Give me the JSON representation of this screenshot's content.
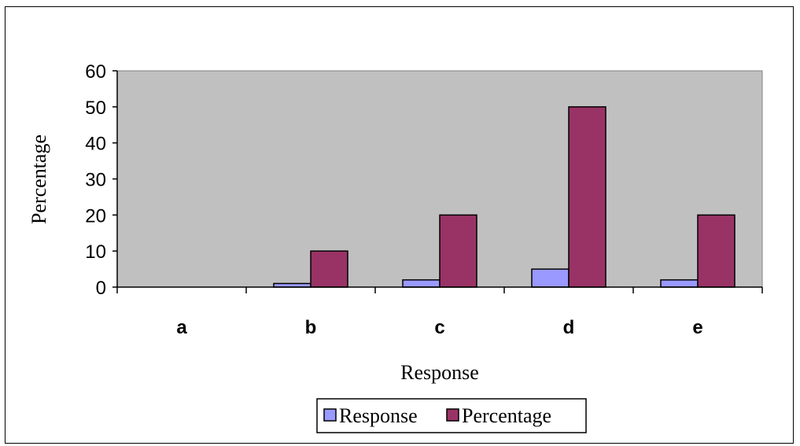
{
  "chart_data": {
    "type": "bar",
    "categories": [
      "a",
      "b",
      "c",
      "d",
      "e"
    ],
    "series": [
      {
        "name": "Response",
        "values": [
          0,
          1,
          2,
          5,
          2
        ],
        "color": "#9999ff"
      },
      {
        "name": "Percentage",
        "values": [
          0,
          10,
          20,
          50,
          20
        ],
        "color": "#993366"
      }
    ],
    "xlabel": "Response",
    "ylabel": "Percentage",
    "ylim": [
      0,
      60
    ],
    "yticks": [
      0,
      10,
      20,
      30,
      40,
      50,
      60
    ],
    "plot_background": "#c0c0c0",
    "grid": false,
    "legend_position": "bottom"
  }
}
